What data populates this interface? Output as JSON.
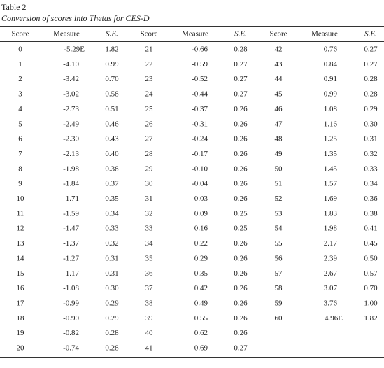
{
  "title": "Table 2",
  "subtitle": "Conversion of scores into Thetas for CES-D",
  "table": {
    "header": [
      "Score",
      "Measure",
      "S.E.",
      "Score",
      "Measure",
      "S.E.",
      "Score",
      "Measure",
      "S.E."
    ],
    "rows": [
      [
        "0",
        "-5.29E",
        "1.82",
        "21",
        "-0.66",
        "0.28",
        "42",
        "0.76",
        "0.27"
      ],
      [
        "1",
        "-4.10",
        "0.99",
        "22",
        "-0.59",
        "0.27",
        "43",
        "0.84",
        "0.27"
      ],
      [
        "2",
        "-3.42",
        "0.70",
        "23",
        "-0.52",
        "0.27",
        "44",
        "0.91",
        "0.28"
      ],
      [
        "3",
        "-3.02",
        "0.58",
        "24",
        "-0.44",
        "0.27",
        "45",
        "0.99",
        "0.28"
      ],
      [
        "4",
        "-2.73",
        "0.51",
        "25",
        "-0.37",
        "0.26",
        "46",
        "1.08",
        "0.29"
      ],
      [
        "5",
        "-2.49",
        "0.46",
        "26",
        "-0.31",
        "0.26",
        "47",
        "1.16",
        "0.30"
      ],
      [
        "6",
        "-2.30",
        "0.43",
        "27",
        "-0.24",
        "0.26",
        "48",
        "1.25",
        "0.31"
      ],
      [
        "7",
        "-2.13",
        "0.40",
        "28",
        "-0.17",
        "0.26",
        "49",
        "1.35",
        "0.32"
      ],
      [
        "8",
        "-1.98",
        "0.38",
        "29",
        "-0.10",
        "0.26",
        "50",
        "1.45",
        "0.33"
      ],
      [
        "9",
        "-1.84",
        "0.37",
        "30",
        "-0.04",
        "0.26",
        "51",
        "1.57",
        "0.34"
      ],
      [
        "10",
        "-1.71",
        "0.35",
        "31",
        "0.03",
        "0.26",
        "52",
        "1.69",
        "0.36"
      ],
      [
        "11",
        "-1.59",
        "0.34",
        "32",
        "0.09",
        "0.25",
        "53",
        "1.83",
        "0.38"
      ],
      [
        "12",
        "-1.47",
        "0.33",
        "33",
        "0.16",
        "0.25",
        "54",
        "1.98",
        "0.41"
      ],
      [
        "13",
        "-1.37",
        "0.32",
        "34",
        "0.22",
        "0.26",
        "55",
        "2.17",
        "0.45"
      ],
      [
        "14",
        "-1.27",
        "0.31",
        "35",
        "0.29",
        "0.26",
        "56",
        "2.39",
        "0.50"
      ],
      [
        "15",
        "-1.17",
        "0.31",
        "36",
        "0.35",
        "0.26",
        "57",
        "2.67",
        "0.57"
      ],
      [
        "16",
        "-1.08",
        "0.30",
        "37",
        "0.42",
        "0.26",
        "58",
        "3.07",
        "0.70"
      ],
      [
        "17",
        "-0.99",
        "0.29",
        "38",
        "0.49",
        "0.26",
        "59",
        "3.76",
        "1.00"
      ],
      [
        "18",
        "-0.90",
        "0.29",
        "39",
        "0.55",
        "0.26",
        "60",
        "4.96E",
        "1.82"
      ],
      [
        "19",
        "-0.82",
        "0.28",
        "40",
        "0.62",
        "0.26"
      ],
      [
        "20",
        "-0.74",
        "0.28",
        "41",
        "0.69",
        "0.27"
      ]
    ]
  }
}
